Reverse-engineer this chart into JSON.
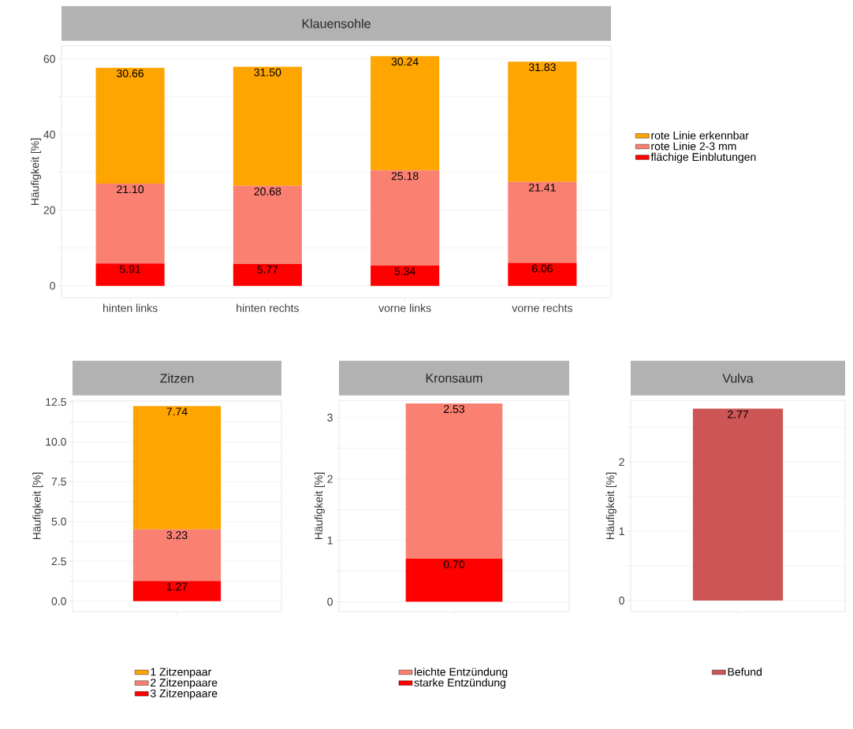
{
  "chart_data": [
    {
      "type": "bar",
      "stacked": true,
      "title": "Klauensohle",
      "ylabel": "Häufigkeit [%]",
      "categories": [
        "hinten links",
        "hinten rechts",
        "vorne links",
        "vorne rechts"
      ],
      "series": [
        {
          "name": "flächige Einblutungen",
          "color": "#ff0000",
          "values": [
            5.91,
            5.77,
            5.34,
            6.06
          ],
          "value_labels": [
            "5.91",
            "5.77",
            "5.34",
            "6.06"
          ]
        },
        {
          "name": "rote Linie 2-3 mm",
          "color": "#fa8072",
          "values": [
            21.1,
            20.68,
            25.18,
            21.41
          ],
          "value_labels": [
            "21.10",
            "20.68",
            "25.18",
            "21.41"
          ]
        },
        {
          "name": "rote Linie erkennbar",
          "color": "#ffa500",
          "values": [
            30.66,
            31.5,
            30.24,
            31.83
          ],
          "value_labels": [
            "30.66",
            "31.50",
            "30.24",
            "31.83"
          ]
        }
      ],
      "ylim": [
        -3.2,
        63.5
      ],
      "yticks": [
        0,
        {
          "value": 10,
          "label": null
        },
        20,
        {
          "value": 30,
          "label": null
        },
        40,
        {
          "value": 50,
          "label": null
        },
        60
      ],
      "grid": "y",
      "legend": "right"
    },
    {
      "type": "bar",
      "stacked": true,
      "title": "Zitzen",
      "ylabel": "Häufigkeit [%]",
      "categories": [
        null
      ],
      "series": [
        {
          "name": "3 Zitzenpaare",
          "color": "#ff0000",
          "values": [
            1.27
          ],
          "value_labels": [
            "1.27"
          ]
        },
        {
          "name": "2 Zitzenpaare",
          "color": "#fa8072",
          "values": [
            3.23
          ],
          "value_labels": [
            "3.23"
          ]
        },
        {
          "name": "1 Zitzenpaar",
          "color": "#ffa500",
          "values": [
            7.74
          ],
          "value_labels": [
            "7.74"
          ]
        }
      ],
      "ylim": [
        -0.65,
        12.6
      ],
      "yticks": [
        {
          "value": 0,
          "label": "0.0"
        },
        {
          "value": 1.25,
          "label": null
        },
        {
          "value": 2.5,
          "label": "2.5"
        },
        {
          "value": 3.75,
          "label": null
        },
        {
          "value": 5,
          "label": "5.0"
        },
        {
          "value": 6.25,
          "label": null
        },
        {
          "value": 7.5,
          "label": "7.5"
        },
        {
          "value": 8.75,
          "label": null
        },
        {
          "value": 10,
          "label": "10.0"
        },
        {
          "value": 11.25,
          "label": null
        },
        {
          "value": 12.5,
          "label": "12.5"
        }
      ],
      "grid": "y",
      "legend": "bottom"
    },
    {
      "type": "bar",
      "stacked": true,
      "title": "Kronsaum",
      "ylabel": "Häufigkeit [%]",
      "categories": [
        null
      ],
      "series": [
        {
          "name": "starke Entzündung",
          "color": "#ff0000",
          "values": [
            0.7
          ],
          "value_labels": [
            "0.70"
          ]
        },
        {
          "name": "leichte Entzündung",
          "color": "#fa8072",
          "values": [
            2.53
          ],
          "value_labels": [
            "2.53"
          ]
        }
      ],
      "ylim": [
        -0.16,
        3.28
      ],
      "yticks": [
        0,
        {
          "value": 0.5,
          "label": null
        },
        1,
        {
          "value": 1.5,
          "label": null
        },
        2,
        {
          "value": 2.5,
          "label": null
        },
        3
      ],
      "grid": "y",
      "legend": "bottom"
    },
    {
      "type": "bar",
      "title": "Vulva",
      "ylabel": "Häufigkeit [%]",
      "categories": [
        null
      ],
      "series": [
        {
          "name": "Befund",
          "color": "#cd5555",
          "values": [
            2.77
          ],
          "value_labels": [
            "2.77"
          ]
        }
      ],
      "ylim": [
        -0.16,
        2.89
      ],
      "yticks": [
        0,
        {
          "value": 0.5,
          "label": null
        },
        1,
        {
          "value": 1.5,
          "label": null
        },
        2,
        {
          "value": 2.5,
          "label": null
        }
      ],
      "grid": "y",
      "legend": "bottom"
    }
  ]
}
